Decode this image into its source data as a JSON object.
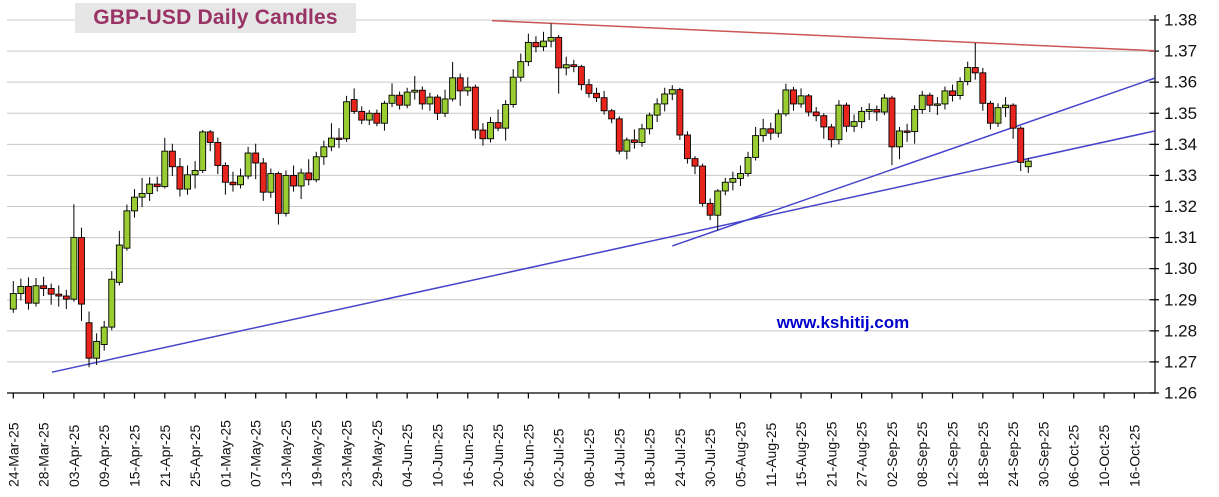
{
  "title": "GBP-USD Daily Candles",
  "watermark": "www.kshitij.com",
  "colors": {
    "up_candle": "#9ACD32",
    "down_candle": "#E8251D",
    "candle_outline": "#000000",
    "grid": "#C8C8C8",
    "axis": "#000000",
    "axis_text": "#111111",
    "title_text": "#993366",
    "title_bg": "#E6E6E6",
    "watermark_text": "#0000CC",
    "support_line": "#4444CC",
    "resistance_line": "#CC5555"
  },
  "chart_data": {
    "type": "candlestick",
    "title": "GBP-USD Daily Candles",
    "ylim": [
      1.26,
      1.38
    ],
    "y_tick_labels": [
      "1.38",
      "1.37",
      "1.36",
      "1.35",
      "1.34",
      "1.33",
      "1.32",
      "1.31",
      "1.30",
      "1.29",
      "1.28",
      "1.27",
      "1.26"
    ],
    "y_tick_values": [
      1.38,
      1.37,
      1.36,
      1.35,
      1.34,
      1.33,
      1.32,
      1.31,
      1.3,
      1.29,
      1.28,
      1.27,
      1.26
    ],
    "x_tick_labels": [
      "24-Mar-25",
      "28-Mar-25",
      "03-Apr-25",
      "09-Apr-25",
      "15-Apr-25",
      "21-Apr-25",
      "25-Apr-25",
      "01-May-25",
      "07-May-25",
      "13-May-25",
      "19-May-25",
      "23-May-25",
      "29-May-25",
      "04-Jun-25",
      "10-Jun-25",
      "16-Jun-25",
      "20-Jun-25",
      "26-Jun-25",
      "02-Jul-25",
      "08-Jul-25",
      "14-Jul-25",
      "18-Jul-25",
      "24-Jul-25",
      "30-Jul-25",
      "05-Aug-25",
      "11-Aug-25",
      "15-Aug-25",
      "21-Aug-25",
      "27-Aug-25",
      "02-Sep-25",
      "08-Sep-25",
      "12-Sep-25",
      "18-Sep-25",
      "24-Sep-25",
      "30-Sep-25",
      "06-Oct-25",
      "10-Oct-25",
      "16-Oct-25"
    ],
    "x_tick_day_indices": [
      0,
      4,
      8,
      12,
      16,
      20,
      24,
      28,
      32,
      36,
      40,
      44,
      48,
      52,
      56,
      60,
      64,
      68,
      72,
      76,
      80,
      84,
      88,
      92,
      96,
      100,
      104,
      108,
      112,
      116,
      120,
      124,
      128,
      132,
      136,
      140,
      144,
      148
    ],
    "x_total_day_span": 150.7,
    "first_candle_label": "24-Mar-25",
    "grid": "horizontal-only",
    "legend": "none",
    "candles_format": [
      "open",
      "high",
      "low",
      "close"
    ],
    "candles": [
      [
        1.287,
        1.296,
        1.2858,
        1.292
      ],
      [
        1.292,
        1.2968,
        1.2898,
        1.2943
      ],
      [
        1.2943,
        1.2972,
        1.2868,
        1.2889
      ],
      [
        1.2889,
        1.297,
        1.2878,
        1.2945
      ],
      [
        1.2945,
        1.2974,
        1.2912,
        1.2936
      ],
      [
        1.2936,
        1.2952,
        1.2884,
        1.2918
      ],
      [
        1.2918,
        1.2946,
        1.2878,
        1.2912
      ],
      [
        1.2912,
        1.2932,
        1.287,
        1.2902
      ],
      [
        1.2902,
        1.3207,
        1.2894,
        1.31
      ],
      [
        1.31,
        1.3132,
        1.2832,
        1.2886
      ],
      [
        1.2826,
        1.2862,
        1.2683,
        1.2712
      ],
      [
        1.2712,
        1.2792,
        1.269,
        1.2766
      ],
      [
        1.2756,
        1.2832,
        1.2736,
        1.2812
      ],
      [
        1.2812,
        1.2992,
        1.2802,
        1.2966
      ],
      [
        1.2956,
        1.3122,
        1.2946,
        1.3076
      ],
      [
        1.3066,
        1.3206,
        1.3058,
        1.3186
      ],
      [
        1.3186,
        1.3256,
        1.3164,
        1.323
      ],
      [
        1.323,
        1.3292,
        1.3198,
        1.3242
      ],
      [
        1.3242,
        1.3294,
        1.3218,
        1.3272
      ],
      [
        1.3272,
        1.3296,
        1.3248,
        1.3264
      ],
      [
        1.3264,
        1.3421,
        1.3258,
        1.3378
      ],
      [
        1.3378,
        1.3402,
        1.3298,
        1.3328
      ],
      [
        1.3328,
        1.3356,
        1.3232,
        1.3256
      ],
      [
        1.3256,
        1.3332,
        1.3238,
        1.3302
      ],
      [
        1.3302,
        1.3346,
        1.3258,
        1.3316
      ],
      [
        1.3316,
        1.3446,
        1.3308,
        1.344
      ],
      [
        1.344,
        1.3446,
        1.3378,
        1.3406
      ],
      [
        1.3406,
        1.3422,
        1.3304,
        1.3332
      ],
      [
        1.3332,
        1.3342,
        1.3238,
        1.3278
      ],
      [
        1.3278,
        1.3312,
        1.3248,
        1.327
      ],
      [
        1.327,
        1.3322,
        1.3258,
        1.3298
      ],
      [
        1.3298,
        1.3392,
        1.3288,
        1.3372
      ],
      [
        1.3372,
        1.3402,
        1.3288,
        1.334
      ],
      [
        1.334,
        1.3356,
        1.3218,
        1.3246
      ],
      [
        1.3246,
        1.3322,
        1.3228,
        1.3306
      ],
      [
        1.3306,
        1.3312,
        1.3142,
        1.3178
      ],
      [
        1.3178,
        1.3316,
        1.3168,
        1.33
      ],
      [
        1.33,
        1.3332,
        1.3248,
        1.3266
      ],
      [
        1.3266,
        1.3322,
        1.3224,
        1.3308
      ],
      [
        1.3308,
        1.3352,
        1.3268,
        1.3286
      ],
      [
        1.3286,
        1.3376,
        1.3278,
        1.336
      ],
      [
        1.336,
        1.3412,
        1.3334,
        1.3392
      ],
      [
        1.3392,
        1.3468,
        1.3378,
        1.342
      ],
      [
        1.342,
        1.3452,
        1.3388,
        1.3418
      ],
      [
        1.3418,
        1.3556,
        1.3408,
        1.3537
      ],
      [
        1.3544,
        1.358,
        1.3498,
        1.3506
      ],
      [
        1.3506,
        1.3522,
        1.3465,
        1.3478
      ],
      [
        1.3478,
        1.351,
        1.3462,
        1.35
      ],
      [
        1.35,
        1.3512,
        1.3458,
        1.3468
      ],
      [
        1.3468,
        1.354,
        1.3444,
        1.3532
      ],
      [
        1.3532,
        1.3596,
        1.352,
        1.3558
      ],
      [
        1.3558,
        1.357,
        1.3512,
        1.3526
      ],
      [
        1.3526,
        1.3582,
        1.3516,
        1.3568
      ],
      [
        1.3568,
        1.362,
        1.3544,
        1.3574
      ],
      [
        1.3574,
        1.3586,
        1.3512,
        1.353
      ],
      [
        1.353,
        1.3566,
        1.3508,
        1.3552
      ],
      [
        1.3552,
        1.356,
        1.3478,
        1.35
      ],
      [
        1.35,
        1.3576,
        1.3488,
        1.3546
      ],
      [
        1.3546,
        1.3665,
        1.3538,
        1.3614
      ],
      [
        1.3614,
        1.3628,
        1.3524,
        1.3572
      ],
      [
        1.3572,
        1.3616,
        1.3556,
        1.3584
      ],
      [
        1.3584,
        1.3592,
        1.3418,
        1.3446
      ],
      [
        1.3446,
        1.3468,
        1.3396,
        1.3418
      ],
      [
        1.3418,
        1.3488,
        1.3406,
        1.347
      ],
      [
        1.347,
        1.3512,
        1.3442,
        1.3452
      ],
      [
        1.3452,
        1.3542,
        1.3412,
        1.3528
      ],
      [
        1.3528,
        1.3642,
        1.3518,
        1.3616
      ],
      [
        1.3616,
        1.3692,
        1.3602,
        1.3666
      ],
      [
        1.3666,
        1.3756,
        1.3652,
        1.3728
      ],
      [
        1.3728,
        1.3748,
        1.3696,
        1.3714
      ],
      [
        1.3714,
        1.3762,
        1.37,
        1.3732
      ],
      [
        1.3732,
        1.3789,
        1.3712,
        1.3744
      ],
      [
        1.3744,
        1.3752,
        1.3563,
        1.3646
      ],
      [
        1.3646,
        1.3682,
        1.3622,
        1.3656
      ],
      [
        1.3656,
        1.3672,
        1.3632,
        1.365
      ],
      [
        1.365,
        1.3656,
        1.3574,
        1.3592
      ],
      [
        1.3592,
        1.361,
        1.355,
        1.3564
      ],
      [
        1.3564,
        1.3582,
        1.3536,
        1.355
      ],
      [
        1.355,
        1.3572,
        1.3496,
        1.3508
      ],
      [
        1.3508,
        1.3514,
        1.3468,
        1.3482
      ],
      [
        1.3482,
        1.349,
        1.3368,
        1.3378
      ],
      [
        1.3378,
        1.3422,
        1.3352,
        1.3414
      ],
      [
        1.3414,
        1.3448,
        1.3386,
        1.3406
      ],
      [
        1.3406,
        1.3466,
        1.3392,
        1.345
      ],
      [
        1.345,
        1.3502,
        1.3432,
        1.3494
      ],
      [
        1.3494,
        1.3548,
        1.3472,
        1.353
      ],
      [
        1.353,
        1.3582,
        1.3506,
        1.3562
      ],
      [
        1.3562,
        1.359,
        1.3542,
        1.3576
      ],
      [
        1.3576,
        1.3582,
        1.3414,
        1.343
      ],
      [
        1.343,
        1.3442,
        1.3338,
        1.3354
      ],
      [
        1.3354,
        1.3362,
        1.3304,
        1.333
      ],
      [
        1.333,
        1.3338,
        1.32,
        1.321
      ],
      [
        1.321,
        1.3226,
        1.3156,
        1.3172
      ],
      [
        1.3172,
        1.3256,
        1.3124,
        1.325
      ],
      [
        1.325,
        1.3292,
        1.3236,
        1.3278
      ],
      [
        1.3278,
        1.3312,
        1.3252,
        1.329
      ],
      [
        1.329,
        1.3332,
        1.3266,
        1.3306
      ],
      [
        1.3306,
        1.3376,
        1.3296,
        1.3358
      ],
      [
        1.3358,
        1.3456,
        1.3348,
        1.3428
      ],
      [
        1.3428,
        1.3482,
        1.3408,
        1.345
      ],
      [
        1.345,
        1.347,
        1.3414,
        1.3436
      ],
      [
        1.3436,
        1.3512,
        1.3422,
        1.3498
      ],
      [
        1.3498,
        1.3595,
        1.349,
        1.3575
      ],
      [
        1.3575,
        1.3585,
        1.3508,
        1.353
      ],
      [
        1.353,
        1.358,
        1.3518,
        1.3556
      ],
      [
        1.3556,
        1.3562,
        1.349,
        1.3504
      ],
      [
        1.3504,
        1.352,
        1.3474,
        1.3492
      ],
      [
        1.3492,
        1.35,
        1.3418,
        1.3456
      ],
      [
        1.3456,
        1.3466,
        1.339,
        1.3415
      ],
      [
        1.3415,
        1.3542,
        1.34,
        1.3526
      ],
      [
        1.3526,
        1.3534,
        1.344,
        1.3458
      ],
      [
        1.3458,
        1.3496,
        1.344,
        1.3473
      ],
      [
        1.3473,
        1.352,
        1.3452,
        1.3506
      ],
      [
        1.3506,
        1.3532,
        1.3478,
        1.3512
      ],
      [
        1.3512,
        1.3525,
        1.3475,
        1.3504
      ],
      [
        1.3504,
        1.3562,
        1.3494,
        1.3549
      ],
      [
        1.3549,
        1.3556,
        1.3333,
        1.3392
      ],
      [
        1.3392,
        1.3456,
        1.3352,
        1.3443
      ],
      [
        1.3443,
        1.3466,
        1.3408,
        1.3441
      ],
      [
        1.3441,
        1.3526,
        1.3402,
        1.3512
      ],
      [
        1.3512,
        1.3572,
        1.3498,
        1.3558
      ],
      [
        1.3558,
        1.3566,
        1.3504,
        1.3526
      ],
      [
        1.3526,
        1.3552,
        1.3494,
        1.353
      ],
      [
        1.353,
        1.3586,
        1.3512,
        1.3572
      ],
      [
        1.3572,
        1.3592,
        1.3538,
        1.3557
      ],
      [
        1.3557,
        1.3616,
        1.3544,
        1.3602
      ],
      [
        1.3602,
        1.3666,
        1.359,
        1.3647
      ],
      [
        1.3647,
        1.3726,
        1.3608,
        1.363
      ],
      [
        1.363,
        1.3646,
        1.3508,
        1.3532
      ],
      [
        1.3532,
        1.354,
        1.3448,
        1.3468
      ],
      [
        1.3468,
        1.3532,
        1.3456,
        1.3518
      ],
      [
        1.3518,
        1.3552,
        1.3488,
        1.3526
      ],
      [
        1.3526,
        1.3532,
        1.3418,
        1.3452
      ],
      [
        1.3452,
        1.3458,
        1.3314,
        1.3342
      ],
      [
        1.3328,
        1.3356,
        1.3308,
        1.3346
      ]
    ],
    "trendlines": [
      {
        "name": "descending-resistance",
        "color": "#CC5555",
        "from_day": 63.2,
        "from_value": 1.3798,
        "to_day": 150.7,
        "to_value": 1.3701
      },
      {
        "name": "long-rising-support",
        "color": "#4444CC",
        "from_day": 5.1,
        "from_value": 1.2667,
        "to_day": 150.7,
        "to_value": 1.3443
      },
      {
        "name": "steep-rising-support",
        "color": "#4444CC",
        "from_day": 87.0,
        "from_value": 1.3073,
        "to_day": 150.7,
        "to_value": 1.3613
      }
    ]
  }
}
